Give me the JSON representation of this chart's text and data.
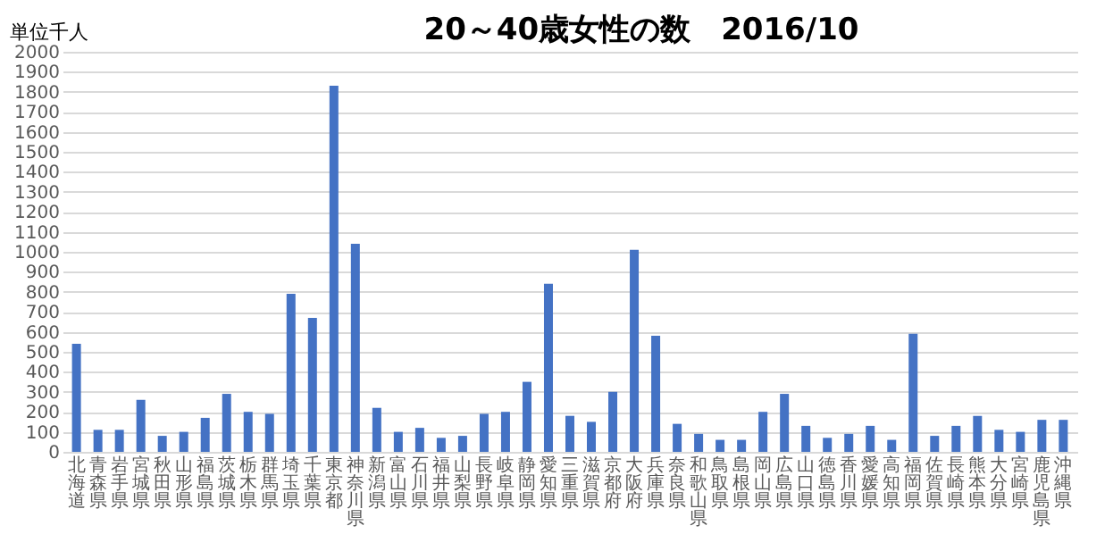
{
  "chart_data": {
    "type": "bar",
    "title": "20～40歳女性の数　2016/10",
    "ylabel": "単位千人",
    "categories": [
      "北海道",
      "青森県",
      "岩手県",
      "宮城県",
      "秋田県",
      "山形県",
      "福島県",
      "茨城県",
      "栃木県",
      "群馬県",
      "埼玉県",
      "千葉県",
      "東京都",
      "神奈川県",
      "新潟県",
      "富山県",
      "石川県",
      "福井県",
      "山梨県",
      "長野県",
      "岐阜県",
      "静岡県",
      "愛知県",
      "三重県",
      "滋賀県",
      "京都府",
      "大阪府",
      "兵庫県",
      "奈良県",
      "和歌山県",
      "鳥取県",
      "島根県",
      "岡山県",
      "広島県",
      "山口県",
      "徳島県",
      "香川県",
      "愛媛県",
      "高知県",
      "福岡県",
      "佐賀県",
      "長崎県",
      "熊本県",
      "大分県",
      "宮崎県",
      "鹿児島県",
      "沖縄県"
    ],
    "values": [
      540,
      110,
      110,
      260,
      80,
      100,
      170,
      290,
      200,
      190,
      790,
      670,
      1830,
      1040,
      220,
      100,
      120,
      70,
      80,
      190,
      200,
      350,
      840,
      180,
      150,
      300,
      1010,
      580,
      140,
      90,
      60,
      60,
      200,
      290,
      130,
      70,
      90,
      130,
      60,
      590,
      80,
      130,
      180,
      110,
      100,
      160,
      160
    ],
    "color": "#4472c4",
    "ylim": [
      0,
      2000
    ],
    "yticks": [
      0,
      100,
      200,
      300,
      400,
      500,
      600,
      700,
      800,
      900,
      1000,
      1100,
      1200,
      1300,
      1400,
      1500,
      1600,
      1700,
      1800,
      1900,
      2000
    ],
    "grid": "y"
  }
}
